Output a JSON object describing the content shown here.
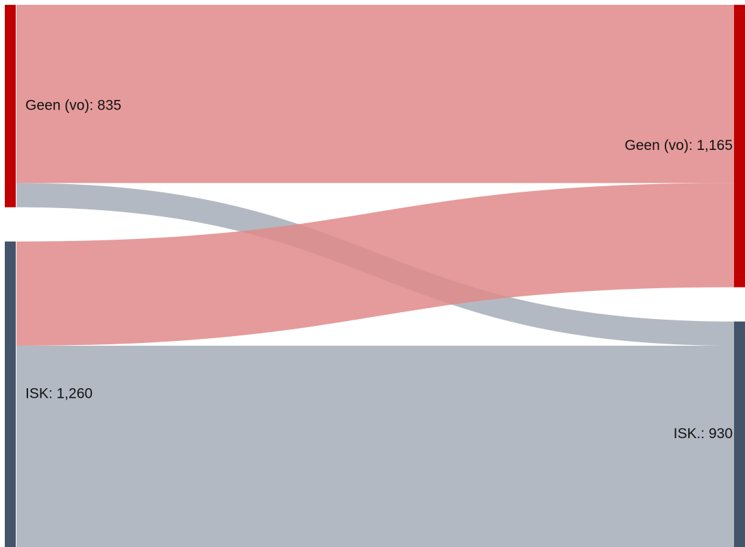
{
  "chart_data": {
    "type": "sankey",
    "nodes": [
      {
        "id": "src_geen",
        "side": "left",
        "label": "Geen (vo): 835",
        "value": 835,
        "color": "#c00000"
      },
      {
        "id": "src_isk",
        "side": "left",
        "label": "ISK: 1,260",
        "value": 1260,
        "color": "#44546a"
      },
      {
        "id": "tgt_geen",
        "side": "right",
        "label": "Geen (vo): 1,165",
        "value": 1165,
        "color": "#c00000"
      },
      {
        "id": "tgt_isk",
        "side": "right",
        "label": "ISK.: 930",
        "value": 930,
        "color": "#44546a"
      }
    ],
    "links": [
      {
        "source": "src_geen",
        "target": "tgt_geen",
        "value": 735,
        "color": "#e08a89"
      },
      {
        "source": "src_geen",
        "target": "tgt_isk",
        "value": 100,
        "color": "#a6adb8"
      },
      {
        "source": "src_isk",
        "target": "tgt_geen",
        "value": 430,
        "color": "#e08a89"
      },
      {
        "source": "src_isk",
        "target": "tgt_isk",
        "value": 830,
        "color": "#a6adb8"
      }
    ]
  }
}
